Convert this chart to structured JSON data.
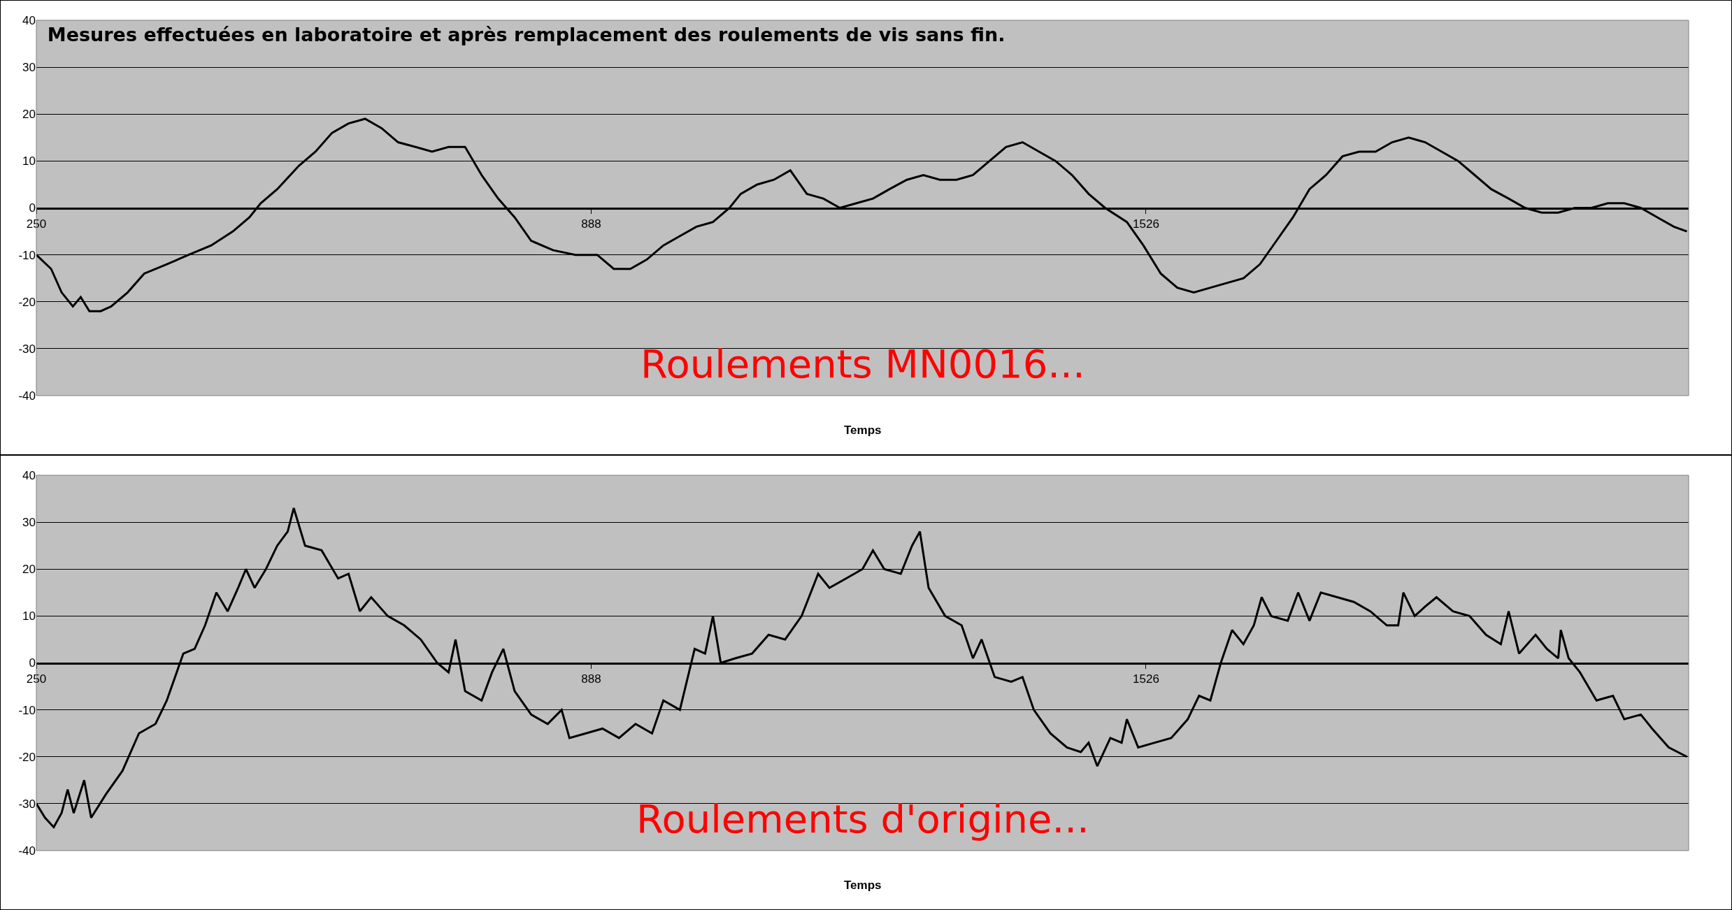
{
  "chart_data": [
    {
      "type": "line",
      "title": "Mesures effectuées en laboratoire et après remplacement des roulements de vis sans fin.",
      "xlabel": "Temps",
      "annotations": [
        "Roulements MN0016..."
      ],
      "xlim": [
        250,
        2150
      ],
      "xticks": [
        250,
        888,
        1526
      ],
      "ylim": [
        -40,
        40
      ],
      "yticks": [
        -40,
        -30,
        -20,
        -10,
        0,
        10,
        20,
        30,
        40
      ],
      "grid": "y",
      "series": [
        {
          "color": "#000000",
          "x": [
            250,
            267,
            279,
            292,
            301,
            311,
            324,
            336,
            355,
            374,
            400,
            425,
            451,
            476,
            495,
            508,
            527,
            552,
            571,
            590,
            609,
            628,
            647,
            666,
            686,
            705,
            724,
            743,
            762,
            781,
            800,
            819,
            844,
            870,
            895,
            914,
            933,
            952,
            971,
            990,
            1009,
            1028,
            1047,
            1060,
            1079,
            1098,
            1117,
            1136,
            1155,
            1174,
            1193,
            1212,
            1231,
            1251,
            1270,
            1289,
            1308,
            1327,
            1346,
            1365,
            1384,
            1403,
            1422,
            1441,
            1460,
            1479,
            1504,
            1523,
            1543,
            1562,
            1581,
            1600,
            1619,
            1638,
            1657,
            1676,
            1695,
            1714,
            1733,
            1752,
            1771,
            1790,
            1809,
            1828,
            1847,
            1866,
            1885,
            1904,
            1923,
            1943,
            1962,
            1981,
            2000,
            2019,
            2038,
            2057,
            2076,
            2095,
            2114,
            2133,
            2148
          ],
          "values": [
            -10,
            -13,
            -18,
            -21,
            -19,
            -22,
            -22,
            -21,
            -18,
            -14,
            -12,
            -10,
            -8,
            -5,
            -2,
            1,
            4,
            9,
            12,
            16,
            18,
            19,
            17,
            14,
            13,
            12,
            13,
            13,
            7,
            2,
            -2,
            -7,
            -9,
            -10,
            -10,
            -13,
            -13,
            -11,
            -8,
            -6,
            -4,
            -3,
            0,
            3,
            5,
            6,
            8,
            3,
            2,
            0,
            1,
            2,
            4,
            6,
            7,
            6,
            6,
            7,
            10,
            13,
            14,
            12,
            10,
            7,
            3,
            0,
            -3,
            -8,
            -14,
            -17,
            -18,
            -17,
            -16,
            -15,
            -12,
            -7,
            -2,
            4,
            7,
            11,
            12,
            12,
            14,
            15,
            14,
            12,
            10,
            7,
            4,
            2,
            0,
            -1,
            -1,
            0,
            0,
            1,
            1,
            0,
            -2,
            -4,
            -5
          ]
        }
      ]
    },
    {
      "type": "line",
      "xlabel": "Temps",
      "annotations": [
        "Roulements d'origine..."
      ],
      "xlim": [
        250,
        2150
      ],
      "xticks": [
        250,
        888,
        1526
      ],
      "ylim": [
        -40,
        40
      ],
      "yticks": [
        -40,
        -30,
        -20,
        -10,
        0,
        10,
        20,
        30,
        40
      ],
      "grid": "y",
      "series": [
        {
          "color": "#000000",
          "x": [
            250,
            260,
            270,
            279,
            286,
            293,
            305,
            313,
            330,
            349,
            368,
            387,
            400,
            419,
            432,
            444,
            457,
            470,
            482,
            491,
            501,
            514,
            527,
            539,
            546,
            559,
            578,
            597,
            609,
            622,
            635,
            654,
            673,
            692,
            711,
            724,
            732,
            743,
            762,
            774,
            787,
            800,
            819,
            838,
            854,
            863,
            882,
            901,
            920,
            939,
            958,
            971,
            990,
            1007,
            1019,
            1028,
            1037,
            1054,
            1073,
            1092,
            1111,
            1130,
            1149,
            1162,
            1181,
            1200,
            1212,
            1225,
            1244,
            1257,
            1266,
            1276,
            1295,
            1314,
            1327,
            1337,
            1352,
            1371,
            1384,
            1397,
            1416,
            1435,
            1451,
            1460,
            1470,
            1485,
            1498,
            1504,
            1517,
            1536,
            1555,
            1574,
            1587,
            1600,
            1612,
            1625,
            1638,
            1650,
            1659,
            1670,
            1689,
            1701,
            1714,
            1727,
            1746,
            1765,
            1784,
            1803,
            1816,
            1822,
            1835,
            1847,
            1860,
            1879,
            1898,
            1917,
            1934,
            1943,
            1955,
            1974,
            1987,
            2000,
            2003,
            2012,
            2025,
            2044,
            2063,
            2076,
            2095,
            2108,
            2127,
            2148
          ],
          "values": [
            -30,
            -33,
            -35,
            -32,
            -27,
            -32,
            -25,
            -33,
            -28,
            -23,
            -15,
            -13,
            -8,
            2,
            3,
            8,
            15,
            11,
            16,
            20,
            16,
            20,
            25,
            28,
            33,
            25,
            24,
            18,
            19,
            11,
            14,
            10,
            8,
            5,
            0,
            -2,
            5,
            -6,
            -8,
            -2,
            3,
            -6,
            -11,
            -13,
            -10,
            -16,
            -15,
            -14,
            -16,
            -13,
            -15,
            -8,
            -10,
            3,
            2,
            10,
            0,
            1,
            2,
            6,
            5,
            10,
            19,
            16,
            18,
            20,
            24,
            20,
            19,
            25,
            28,
            16,
            10,
            8,
            1,
            5,
            -3,
            -4,
            -3,
            -10,
            -15,
            -18,
            -19,
            -17,
            -22,
            -16,
            -17,
            -12,
            -18,
            -17,
            -16,
            -12,
            -7,
            -8,
            0,
            7,
            4,
            8,
            14,
            10,
            9,
            15,
            9,
            15,
            14,
            13,
            11,
            8,
            8,
            15,
            10,
            12,
            14,
            11,
            10,
            6,
            4,
            11,
            2,
            6,
            3,
            1,
            7,
            1,
            -2,
            -8,
            -7,
            -12,
            -11,
            -14,
            -18,
            -20
          ]
        }
      ]
    }
  ]
}
